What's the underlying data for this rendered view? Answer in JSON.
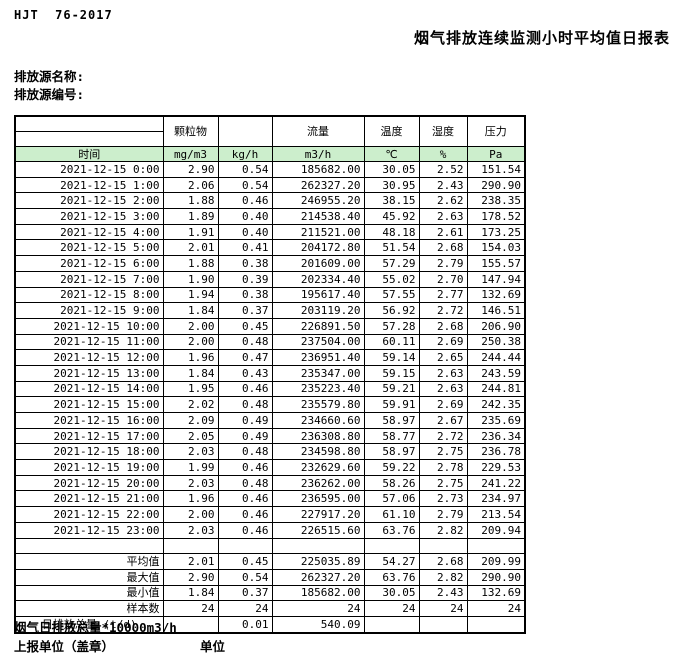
{
  "header": {
    "standard_code": "HJT  76-2017",
    "title": "烟气排放连续监测小时平均值日报表",
    "source_name_label": "排放源名称:",
    "source_code_label": "排放源编号:"
  },
  "table": {
    "col_groups": {
      "particulate": "颗粒物",
      "particulate_extra": "",
      "flow": "流量",
      "temperature": "温度",
      "humidity": "湿度",
      "pressure": "压力"
    },
    "unit_row": {
      "time_label": "时间",
      "units": [
        "mg/m3",
        "kg/h",
        "m3/h",
        "℃",
        "%",
        "Pa"
      ]
    },
    "rows": [
      {
        "time": "2021-12-15 0:00",
        "values": [
          "2.90",
          "0.54",
          "185682.00",
          "30.05",
          "2.52",
          "151.54"
        ]
      },
      {
        "time": "2021-12-15 1:00",
        "values": [
          "2.06",
          "0.54",
          "262327.20",
          "30.95",
          "2.43",
          "290.90"
        ]
      },
      {
        "time": "2021-12-15 2:00",
        "values": [
          "1.88",
          "0.46",
          "246955.20",
          "38.15",
          "2.62",
          "238.35"
        ]
      },
      {
        "time": "2021-12-15 3:00",
        "values": [
          "1.89",
          "0.40",
          "214538.40",
          "45.92",
          "2.63",
          "178.52"
        ]
      },
      {
        "time": "2021-12-15 4:00",
        "values": [
          "1.91",
          "0.40",
          "211521.00",
          "48.18",
          "2.61",
          "173.25"
        ]
      },
      {
        "time": "2021-12-15 5:00",
        "values": [
          "2.01",
          "0.41",
          "204172.80",
          "51.54",
          "2.68",
          "154.03"
        ]
      },
      {
        "time": "2021-12-15 6:00",
        "values": [
          "1.88",
          "0.38",
          "201609.00",
          "57.29",
          "2.79",
          "155.57"
        ]
      },
      {
        "time": "2021-12-15 7:00",
        "values": [
          "1.90",
          "0.39",
          "202334.40",
          "55.02",
          "2.70",
          "147.94"
        ]
      },
      {
        "time": "2021-12-15 8:00",
        "values": [
          "1.94",
          "0.38",
          "195617.40",
          "57.55",
          "2.77",
          "132.69"
        ]
      },
      {
        "time": "2021-12-15 9:00",
        "values": [
          "1.84",
          "0.37",
          "203119.20",
          "56.92",
          "2.72",
          "146.51"
        ]
      },
      {
        "time": "2021-12-15 10:00",
        "values": [
          "2.00",
          "0.45",
          "226891.50",
          "57.28",
          "2.68",
          "206.90"
        ]
      },
      {
        "time": "2021-12-15 11:00",
        "values": [
          "2.00",
          "0.48",
          "237504.00",
          "60.11",
          "2.69",
          "250.38"
        ]
      },
      {
        "time": "2021-12-15 12:00",
        "values": [
          "1.96",
          "0.47",
          "236951.40",
          "59.14",
          "2.65",
          "244.44"
        ]
      },
      {
        "time": "2021-12-15 13:00",
        "values": [
          "1.84",
          "0.43",
          "235347.00",
          "59.15",
          "2.63",
          "243.59"
        ]
      },
      {
        "time": "2021-12-15 14:00",
        "values": [
          "1.95",
          "0.46",
          "235223.40",
          "59.21",
          "2.63",
          "244.81"
        ]
      },
      {
        "time": "2021-12-15 15:00",
        "values": [
          "2.02",
          "0.48",
          "235579.80",
          "59.91",
          "2.69",
          "242.35"
        ]
      },
      {
        "time": "2021-12-15 16:00",
        "values": [
          "2.09",
          "0.49",
          "234660.60",
          "58.97",
          "2.67",
          "235.69"
        ]
      },
      {
        "time": "2021-12-15 17:00",
        "values": [
          "2.05",
          "0.49",
          "236308.80",
          "58.77",
          "2.72",
          "236.34"
        ]
      },
      {
        "time": "2021-12-15 18:00",
        "values": [
          "2.03",
          "0.48",
          "234598.80",
          "58.97",
          "2.75",
          "236.78"
        ]
      },
      {
        "time": "2021-12-15 19:00",
        "values": [
          "1.99",
          "0.46",
          "232629.60",
          "59.22",
          "2.78",
          "229.53"
        ]
      },
      {
        "time": "2021-12-15 20:00",
        "values": [
          "2.03",
          "0.48",
          "236262.00",
          "58.26",
          "2.75",
          "241.22"
        ]
      },
      {
        "time": "2021-12-15 21:00",
        "values": [
          "1.96",
          "0.46",
          "236595.00",
          "57.06",
          "2.73",
          "234.97"
        ]
      },
      {
        "time": "2021-12-15 22:00",
        "values": [
          "2.00",
          "0.46",
          "227917.20",
          "61.10",
          "2.79",
          "213.54"
        ]
      },
      {
        "time": "2021-12-15 23:00",
        "values": [
          "2.03",
          "0.46",
          "226515.60",
          "63.76",
          "2.82",
          "209.94"
        ]
      }
    ],
    "summary": [
      {
        "label": "平均值",
        "values": [
          "2.01",
          "0.45",
          "225035.89",
          "54.27",
          "2.68",
          "209.99"
        ]
      },
      {
        "label": "最大值",
        "values": [
          "2.90",
          "0.54",
          "262327.20",
          "63.76",
          "2.82",
          "290.90"
        ]
      },
      {
        "label": "最小值",
        "values": [
          "1.84",
          "0.37",
          "185682.00",
          "30.05",
          "2.43",
          "132.69"
        ]
      },
      {
        "label": "样本数",
        "values": [
          "24",
          "24",
          "24",
          "24",
          "24",
          "24"
        ]
      },
      {
        "label": "日排放总量 (t/d)",
        "values": [
          "",
          "0.01",
          "540.09",
          "",
          "",
          ""
        ]
      }
    ]
  },
  "footer": {
    "note": "烟气日排放总量*10000m3/h",
    "report_unit_label": "上报单位（盖章）",
    "unit_label": "单位"
  },
  "colors": {
    "header_fill": "#CCEECC",
    "border": "#000000"
  }
}
